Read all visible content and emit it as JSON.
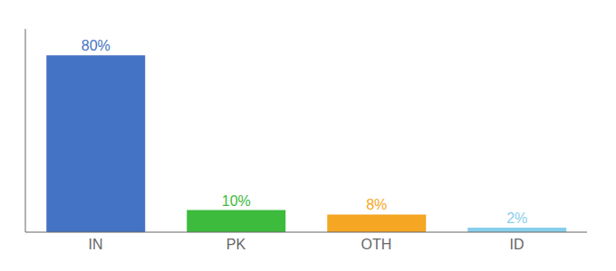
{
  "chart_data": {
    "type": "bar",
    "categories": [
      "IN",
      "PK",
      "OTH",
      "ID"
    ],
    "values": [
      80,
      10,
      8,
      2
    ],
    "value_labels": [
      "80%",
      "10%",
      "8%",
      "2%"
    ],
    "data_labels": true,
    "colors": [
      "#4472c4",
      "#3dbb3d",
      "#f5a623",
      "#87ceeb"
    ],
    "ylim": [
      0,
      92
    ],
    "tick_labels": "x",
    "grid": false
  }
}
